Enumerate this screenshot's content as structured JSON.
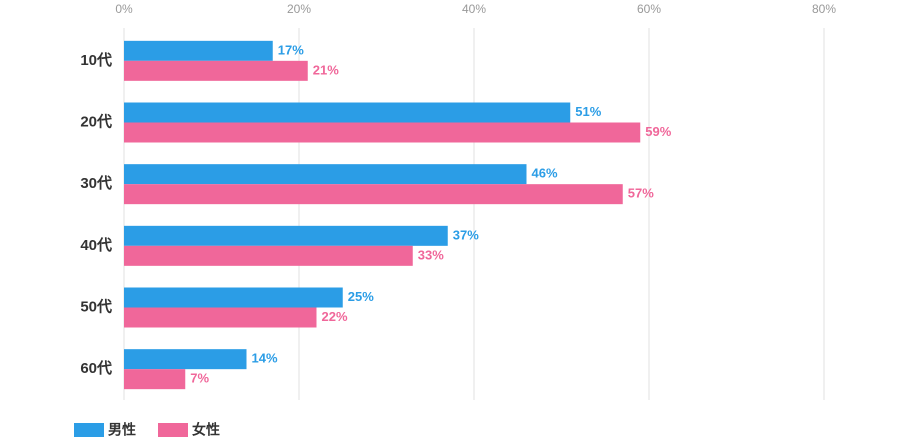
{
  "chart_data": {
    "type": "bar",
    "orientation": "horizontal",
    "categories": [
      "10代",
      "20代",
      "30代",
      "40代",
      "50代",
      "60代"
    ],
    "series": [
      {
        "name": "男性",
        "color": "#2b9de6",
        "values": [
          17,
          51,
          46,
          37,
          25,
          14
        ],
        "value_labels": [
          "17%",
          "51%",
          "46%",
          "37%",
          "25%",
          "14%"
        ]
      },
      {
        "name": "女性",
        "color": "#f0679a",
        "values": [
          21,
          59,
          57,
          33,
          22,
          7
        ],
        "value_labels": [
          "21%",
          "59%",
          "57%",
          "33%",
          "22%",
          "7%"
        ]
      }
    ],
    "xlim": [
      0,
      80
    ],
    "xticks": [
      {
        "value": 0,
        "label": "0%"
      },
      {
        "value": 20,
        "label": "20%"
      },
      {
        "value": 40,
        "label": "40%"
      },
      {
        "value": 60,
        "label": "60%"
      },
      {
        "value": 80,
        "label": "80%"
      }
    ],
    "grid": true,
    "legend": "bottom-left"
  }
}
